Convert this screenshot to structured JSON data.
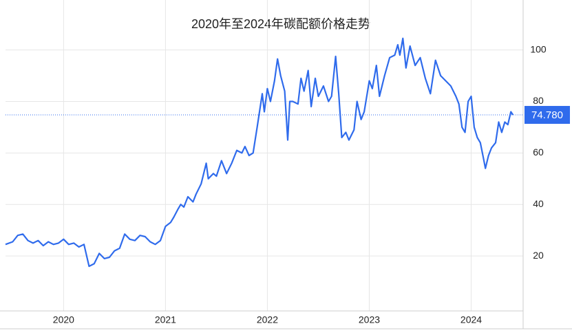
{
  "chart_data": {
    "type": "line",
    "title": "2020年至2024年碳配额价格走势",
    "x": [
      2019.43,
      2019.5,
      2019.55,
      2019.6,
      2019.65,
      2019.7,
      2019.75,
      2019.8,
      2019.85,
      2019.9,
      2019.95,
      2020.0,
      2020.05,
      2020.1,
      2020.15,
      2020.2,
      2020.25,
      2020.3,
      2020.35,
      2020.4,
      2020.45,
      2020.5,
      2020.55,
      2020.6,
      2020.65,
      2020.7,
      2020.75,
      2020.8,
      2020.85,
      2020.9,
      2020.95,
      2021.0,
      2021.05,
      2021.08,
      2021.12,
      2021.15,
      2021.18,
      2021.22,
      2021.27,
      2021.3,
      2021.35,
      2021.4,
      2021.42,
      2021.47,
      2021.5,
      2021.55,
      2021.6,
      2021.65,
      2021.7,
      2021.75,
      2021.78,
      2021.82,
      2021.86,
      2021.9,
      2021.95,
      2021.97,
      2022.0,
      2022.03,
      2022.07,
      2022.1,
      2022.13,
      2022.17,
      2022.2,
      2022.22,
      2022.25,
      2022.3,
      2022.33,
      2022.36,
      2022.4,
      2022.43,
      2022.47,
      2022.5,
      2022.55,
      2022.6,
      2022.63,
      2022.67,
      2022.7,
      2022.73,
      2022.77,
      2022.8,
      2022.85,
      2022.88,
      2022.92,
      2022.95,
      2023.0,
      2023.03,
      2023.07,
      2023.1,
      2023.15,
      2023.2,
      2023.25,
      2023.28,
      2023.3,
      2023.33,
      2023.36,
      2023.4,
      2023.45,
      2023.5,
      2023.55,
      2023.6,
      2023.65,
      2023.7,
      2023.75,
      2023.8,
      2023.85,
      2023.88,
      2023.91,
      2023.94,
      2023.97,
      2024.0,
      2024.03,
      2024.06,
      2024.09,
      2024.12,
      2024.14,
      2024.17,
      2024.2,
      2024.24,
      2024.27,
      2024.3,
      2024.33,
      2024.36,
      2024.39,
      2024.41
    ],
    "series": [
      {
        "color": "#2f6bec",
        "values": [
          24.5,
          25.5,
          28,
          28.5,
          26,
          25,
          26,
          24,
          25.5,
          24.5,
          25,
          26.5,
          24.5,
          25,
          23.5,
          24.5,
          16,
          17,
          21,
          19,
          19.5,
          22,
          23,
          28.5,
          26.5,
          26,
          28,
          27.5,
          25.5,
          24.5,
          26,
          31.5,
          33,
          35,
          38,
          40,
          39,
          43,
          41,
          44,
          48,
          56,
          50,
          52,
          51,
          57,
          52,
          56,
          61,
          60,
          62.5,
          59,
          60,
          70,
          83,
          76,
          85,
          80,
          88,
          96.5,
          90,
          84,
          65,
          80,
          80,
          79,
          89,
          84,
          92,
          78,
          89,
          82,
          86,
          80,
          82,
          97.5,
          83,
          66,
          68,
          65,
          69,
          80,
          73,
          76,
          88,
          85,
          94,
          82,
          90,
          97,
          98,
          102,
          98,
          104.5,
          93,
          101.5,
          94,
          97,
          89,
          83,
          96,
          90,
          88,
          86,
          82,
          79,
          70,
          68,
          80,
          82,
          70,
          66,
          64,
          58,
          54,
          59,
          62,
          64,
          72,
          68,
          72,
          71,
          76,
          74.78
        ]
      }
    ],
    "last_value": {
      "value": 74.78,
      "label": "74.780"
    },
    "xlim": [
      2019.43,
      2024.51
    ],
    "xticks": [
      2020,
      2021,
      2022,
      2023,
      2024
    ],
    "ylim": [
      0,
      105.5
    ],
    "yticks": [
      20,
      40,
      60,
      80,
      100
    ],
    "grid": true
  }
}
